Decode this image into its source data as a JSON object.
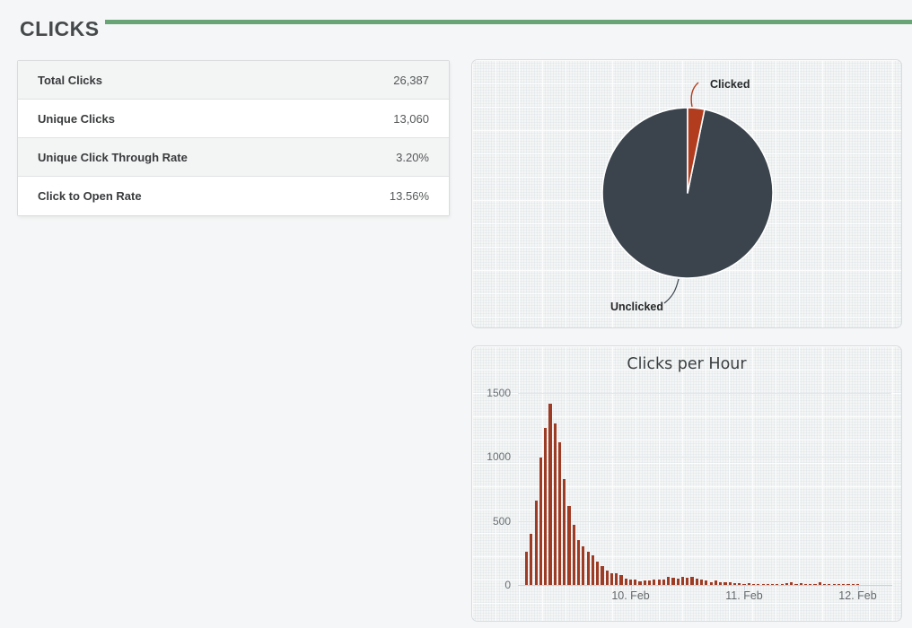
{
  "page": {
    "title": "CLICKS"
  },
  "colors": {
    "accent_green": "#68a476",
    "bar_red": "#9e3b24",
    "pie_red": "#b23d1e",
    "pie_dark": "#3b434c"
  },
  "stats_table": {
    "rows": [
      {
        "label": "Total Clicks",
        "value": "26,387"
      },
      {
        "label": "Unique Clicks",
        "value": "13,060"
      },
      {
        "label": "Unique Click Through Rate",
        "value": "3.20%"
      },
      {
        "label": "Click to Open Rate",
        "value": "13.56%"
      }
    ]
  },
  "chart_data": [
    {
      "type": "pie",
      "title": "",
      "labels": [
        "Clicked",
        "Unclicked"
      ],
      "values_pct": [
        3.2,
        96.8
      ],
      "colors": [
        "#b23d1e",
        "#3b434c"
      ],
      "legend_position": "data-labels",
      "start_angle_deg": 0
    },
    {
      "type": "bar",
      "title": "Clicks per Hour",
      "xlabel": "",
      "ylabel": "",
      "ylim": [
        0,
        1500
      ],
      "yticks": [
        0,
        500,
        1000,
        1500
      ],
      "grid": true,
      "x_unit": "hour",
      "x_tick_labels": [
        {
          "label": "10. Feb",
          "index": 22
        },
        {
          "label": "11. Feb",
          "index": 46
        },
        {
          "label": "12. Feb",
          "index": 70
        }
      ],
      "values": [
        260,
        400,
        660,
        995,
        1230,
        1415,
        1265,
        1115,
        825,
        620,
        470,
        350,
        300,
        260,
        233,
        180,
        150,
        110,
        90,
        88,
        74,
        46,
        40,
        40,
        25,
        32,
        32,
        40,
        40,
        42,
        60,
        58,
        46,
        65,
        56,
        60,
        46,
        40,
        32,
        20,
        32,
        20,
        18,
        18,
        12,
        12,
        6,
        12,
        8,
        10,
        6,
        8,
        8,
        10,
        10,
        12,
        18,
        10,
        12,
        10,
        10,
        8,
        18,
        10,
        8,
        8,
        10,
        8,
        5,
        10,
        8
      ]
    }
  ]
}
